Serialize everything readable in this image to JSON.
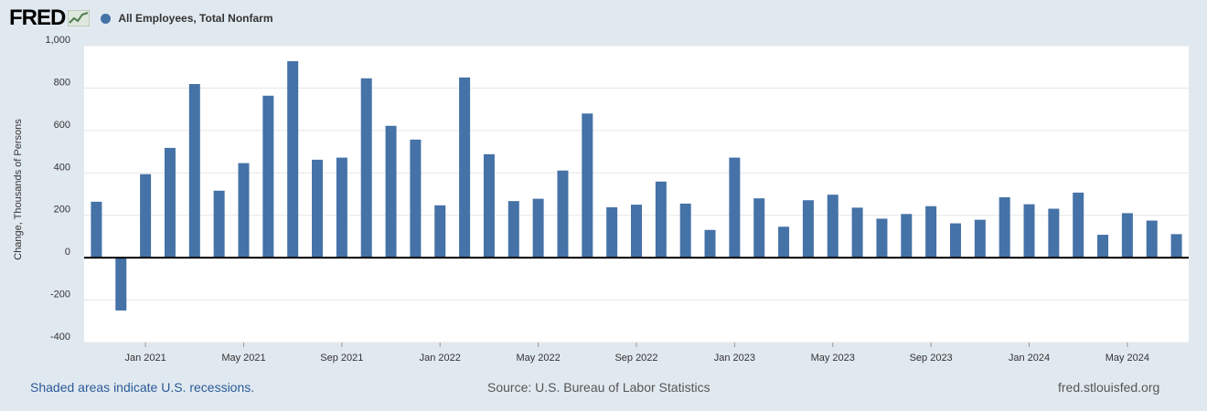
{
  "header": {
    "logo": "FRED",
    "series_name": "All Employees, Total Nonfarm",
    "series_color": "#4572a7"
  },
  "footer": {
    "recession_note": "Shaded areas indicate U.S. recessions.",
    "source": "Source: U.S. Bureau of Labor Statistics",
    "site": "fred.stlouisfed.org"
  },
  "chart_data": {
    "type": "bar",
    "title": "All Employees, Total Nonfarm",
    "xlabel": "",
    "ylabel": "Change, Thousands of Persons",
    "ylim": [
      -400,
      1000
    ],
    "yticks": [
      -400,
      -200,
      0,
      200,
      400,
      600,
      800,
      1000
    ],
    "ytick_labels": [
      "-400",
      "-200",
      "0",
      "200",
      "400",
      "600",
      "800",
      "1,000"
    ],
    "grid": true,
    "bar_color": "#4572a7",
    "categories": [
      "Nov 2020",
      "Dec 2020",
      "Jan 2021",
      "Feb 2021",
      "Mar 2021",
      "Apr 2021",
      "May 2021",
      "Jun 2021",
      "Jul 2021",
      "Aug 2021",
      "Sep 2021",
      "Oct 2021",
      "Nov 2021",
      "Dec 2021",
      "Jan 2022",
      "Feb 2022",
      "Mar 2022",
      "Apr 2022",
      "May 2022",
      "Jun 2022",
      "Jul 2022",
      "Aug 2022",
      "Sep 2022",
      "Oct 2022",
      "Nov 2022",
      "Dec 2022",
      "Jan 2023",
      "Feb 2023",
      "Mar 2023",
      "Apr 2023",
      "May 2023",
      "Jun 2023",
      "Jul 2023",
      "Aug 2023",
      "Sep 2023",
      "Oct 2023",
      "Nov 2023",
      "Dec 2023",
      "Jan 2024",
      "Feb 2024",
      "Mar 2024",
      "Apr 2024",
      "May 2024",
      "Jun 2024",
      "Jul 2024"
    ],
    "values": [
      264,
      -249,
      394,
      518,
      819,
      316,
      446,
      764,
      927,
      462,
      472,
      846,
      622,
      557,
      247,
      850,
      488,
      267,
      278,
      411,
      680,
      238,
      250,
      359,
      255,
      131,
      472,
      280,
      146,
      271,
      297,
      236,
      184,
      206,
      243,
      162,
      179,
      285,
      252,
      231,
      307,
      108,
      210,
      175,
      111
    ],
    "xticks": [
      "Jan 2021",
      "May 2021",
      "Sep 2021",
      "Jan 2022",
      "May 2022",
      "Sep 2022",
      "Jan 2023",
      "May 2023",
      "Sep 2023",
      "Jan 2024",
      "May 2024"
    ]
  }
}
